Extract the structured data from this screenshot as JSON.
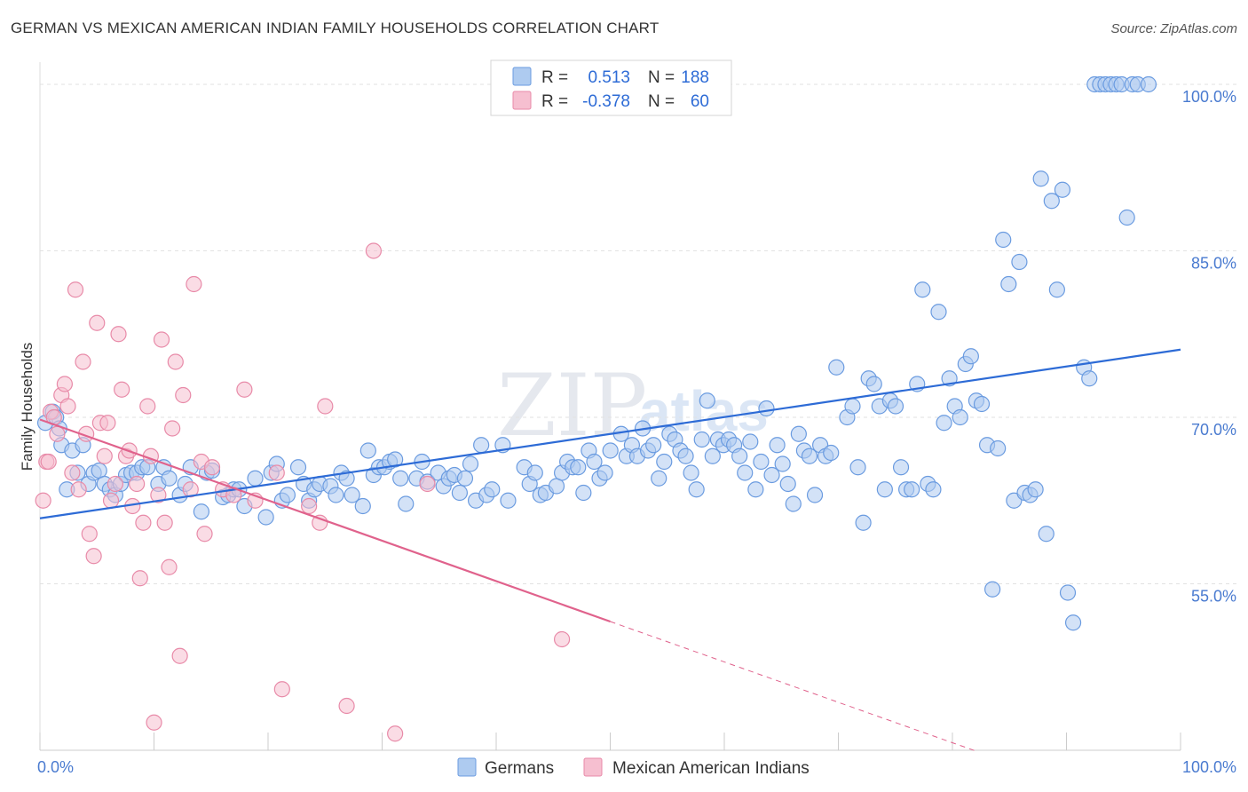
{
  "title": "GERMAN VS MEXICAN AMERICAN INDIAN FAMILY HOUSEHOLDS CORRELATION CHART",
  "source": "Source: ZipAtlas.com",
  "watermark": {
    "zip": "ZIP",
    "atlas": "atlas"
  },
  "legend": {
    "rows": [
      {
        "r_label": "R =",
        "r_value": "0.513",
        "n_label": "N =",
        "n_value": "188",
        "color": "#aecbf0",
        "stroke": "#6a9be0"
      },
      {
        "r_label": "R =",
        "r_value": "-0.378",
        "n_label": "N =",
        "n_value": "60",
        "color": "#f6bfd0",
        "stroke": "#e88aa8"
      }
    ]
  },
  "bottom_legend": [
    {
      "label": "Germans",
      "color": "#aecbf0",
      "stroke": "#6a9be0"
    },
    {
      "label": "Mexican American Indians",
      "color": "#f6bfd0",
      "stroke": "#e88aa8"
    }
  ],
  "chart_data": {
    "type": "scatter",
    "title": "GERMAN VS MEXICAN AMERICAN INDIAN FAMILY HOUSEHOLDS CORRELATION CHART",
    "xlabel": "",
    "ylabel": "Family Households",
    "xlim": [
      0,
      100
    ],
    "ylim": [
      40,
      102
    ],
    "x_tick_labels": [
      "0.0%",
      "100.0%"
    ],
    "y_ticks": [
      55,
      70,
      85,
      100
    ],
    "y_tick_labels": [
      "55.0%",
      "70.0%",
      "85.0%",
      "100.0%"
    ],
    "grid": true,
    "legend_position": "top-center",
    "series": [
      {
        "name": "Germans",
        "color": "#aecbf0",
        "stroke": "#6a9be0",
        "trend": {
          "x": [
            0,
            100
          ],
          "y": [
            60.9,
            76.1
          ],
          "color": "#2d6bd6"
        },
        "points": [
          [
            0.5,
            69.5
          ],
          [
            1.2,
            70.5
          ],
          [
            1.5,
            70
          ],
          [
            1.8,
            69
          ],
          [
            2,
            67.5
          ],
          [
            2.5,
            63.5
          ],
          [
            3,
            67
          ],
          [
            3.5,
            65
          ],
          [
            4,
            67.5
          ],
          [
            4.5,
            64
          ],
          [
            5,
            65
          ],
          [
            5.5,
            65.2
          ],
          [
            6,
            64
          ],
          [
            6.5,
            63.5
          ],
          [
            7,
            63
          ],
          [
            7.5,
            64
          ],
          [
            8,
            64.8
          ],
          [
            8.5,
            65
          ],
          [
            9,
            65
          ],
          [
            9.5,
            65.5
          ],
          [
            10,
            65.5
          ],
          [
            11,
            64
          ],
          [
            11.5,
            65.5
          ],
          [
            12,
            64.5
          ],
          [
            13,
            63
          ],
          [
            13.5,
            64
          ],
          [
            14,
            65.5
          ],
          [
            15,
            61.5
          ],
          [
            15.5,
            65
          ],
          [
            16,
            65.2
          ],
          [
            17,
            62.8
          ],
          [
            17.5,
            63
          ],
          [
            18,
            63.5
          ],
          [
            18.5,
            63.5
          ],
          [
            19,
            62
          ],
          [
            20,
            64.5
          ],
          [
            21,
            61
          ],
          [
            21.5,
            65
          ],
          [
            22,
            65.8
          ],
          [
            22.5,
            62.5
          ],
          [
            23,
            63
          ],
          [
            24,
            65.5
          ],
          [
            24.5,
            64
          ],
          [
            25,
            62.5
          ],
          [
            25.5,
            63.5
          ],
          [
            26,
            64
          ],
          [
            27,
            63.8
          ],
          [
            27.5,
            63
          ],
          [
            28,
            65
          ],
          [
            28.5,
            64.5
          ],
          [
            29,
            63
          ],
          [
            30,
            62
          ],
          [
            30.5,
            67
          ],
          [
            31,
            64.8
          ],
          [
            31.5,
            65.5
          ],
          [
            32,
            65.5
          ],
          [
            32.5,
            66
          ],
          [
            33,
            66.2
          ],
          [
            33.5,
            64.5
          ],
          [
            34,
            62.2
          ],
          [
            35,
            64.5
          ],
          [
            35.5,
            66
          ],
          [
            36,
            64.2
          ],
          [
            37,
            65
          ],
          [
            37.5,
            63.8
          ],
          [
            38,
            64.5
          ],
          [
            38.5,
            64.8
          ],
          [
            39,
            63.2
          ],
          [
            39.5,
            64.5
          ],
          [
            40,
            65.8
          ],
          [
            40.5,
            62.5
          ],
          [
            41,
            67.5
          ],
          [
            41.5,
            63
          ],
          [
            42,
            63.5
          ],
          [
            43,
            67.5
          ],
          [
            43.5,
            62.5
          ],
          [
            45,
            65.5
          ],
          [
            45.5,
            64
          ],
          [
            46,
            65
          ],
          [
            46.5,
            63
          ],
          [
            47,
            63.2
          ],
          [
            48,
            63.8
          ],
          [
            48.5,
            65
          ],
          [
            49,
            66
          ],
          [
            49.5,
            65.5
          ],
          [
            50,
            65.5
          ],
          [
            50.5,
            63.2
          ],
          [
            51,
            67
          ],
          [
            51.5,
            66
          ],
          [
            52,
            64.5
          ],
          [
            52.5,
            65
          ],
          [
            53,
            67
          ],
          [
            54,
            68.5
          ],
          [
            54.5,
            66.5
          ],
          [
            55,
            67.5
          ],
          [
            55.5,
            66.5
          ],
          [
            56,
            69
          ],
          [
            56.5,
            67
          ],
          [
            57,
            67.5
          ],
          [
            57.5,
            64.5
          ],
          [
            58,
            66
          ],
          [
            58.5,
            68.5
          ],
          [
            59,
            68
          ],
          [
            59.5,
            67
          ],
          [
            60,
            66.5
          ],
          [
            60.5,
            65
          ],
          [
            61,
            63.5
          ],
          [
            61.5,
            68
          ],
          [
            62,
            71.5
          ],
          [
            62.5,
            66.5
          ],
          [
            63,
            68
          ],
          [
            63.5,
            67.5
          ],
          [
            64,
            68
          ],
          [
            64.5,
            67.5
          ],
          [
            65,
            66.5
          ],
          [
            65.5,
            65
          ],
          [
            66,
            67.8
          ],
          [
            66.5,
            63.5
          ],
          [
            67,
            66
          ],
          [
            67.5,
            70.8
          ],
          [
            68,
            64.8
          ],
          [
            68.5,
            67.5
          ],
          [
            69,
            65.8
          ],
          [
            69.5,
            64
          ],
          [
            70,
            62.2
          ],
          [
            70.5,
            68.5
          ],
          [
            71,
            67
          ],
          [
            71.5,
            66.5
          ],
          [
            72,
            63
          ],
          [
            72.5,
            67.5
          ],
          [
            73,
            66.5
          ],
          [
            73.5,
            66.8
          ],
          [
            74,
            74.5
          ],
          [
            75,
            70
          ],
          [
            75.5,
            71
          ],
          [
            76,
            65.5
          ],
          [
            76.5,
            60.5
          ],
          [
            77,
            73.5
          ],
          [
            77.5,
            73
          ],
          [
            78,
            71
          ],
          [
            78.5,
            63.5
          ],
          [
            79,
            71.5
          ],
          [
            79.5,
            71
          ],
          [
            80,
            65.5
          ],
          [
            80.5,
            63.5
          ],
          [
            81,
            63.5
          ],
          [
            81.5,
            73
          ],
          [
            82,
            81.5
          ],
          [
            82.5,
            64
          ],
          [
            83,
            63.5
          ],
          [
            83.5,
            79.5
          ],
          [
            84,
            69.5
          ],
          [
            84.5,
            73.5
          ],
          [
            85,
            71
          ],
          [
            85.5,
            70
          ],
          [
            86,
            74.8
          ],
          [
            86.5,
            75.5
          ],
          [
            87,
            71.5
          ],
          [
            87.5,
            71.2
          ],
          [
            88,
            67.5
          ],
          [
            88.5,
            54.5
          ],
          [
            89,
            67.2
          ],
          [
            89.5,
            86
          ],
          [
            90,
            82
          ],
          [
            90.5,
            62.5
          ],
          [
            91,
            84
          ],
          [
            91.5,
            63.2
          ],
          [
            92,
            63
          ],
          [
            92.5,
            63.5
          ],
          [
            93,
            91.5
          ],
          [
            93.5,
            59.5
          ],
          [
            94,
            89.5
          ],
          [
            94.5,
            81.5
          ],
          [
            95,
            90.5
          ],
          [
            95.5,
            54.2
          ],
          [
            96,
            51.5
          ],
          [
            97,
            74.5
          ],
          [
            97.5,
            73.5
          ],
          [
            98,
            100
          ],
          [
            98.5,
            100
          ],
          [
            99,
            100
          ],
          [
            99.5,
            100
          ],
          [
            100,
            100
          ],
          [
            100.5,
            100
          ],
          [
            101,
            88
          ],
          [
            101.5,
            100
          ],
          [
            102,
            100
          ],
          [
            103,
            100
          ]
        ]
      },
      {
        "name": "Mexican American Indians",
        "color": "#f6bfd0",
        "stroke": "#e88aa8",
        "trend": {
          "x": [
            0,
            50
          ],
          "y": [
            69.8,
            51.6
          ],
          "color": "#e0628c"
        },
        "trend_dashed": {
          "x": [
            50,
            100
          ],
          "y": [
            51.6,
            33.4
          ]
        },
        "points": [
          [
            0.3,
            62.5
          ],
          [
            0.6,
            66
          ],
          [
            0.8,
            66
          ],
          [
            1,
            70.5
          ],
          [
            1.3,
            70
          ],
          [
            1.6,
            68.5
          ],
          [
            2,
            72
          ],
          [
            2.3,
            73
          ],
          [
            2.6,
            71
          ],
          [
            3,
            65
          ],
          [
            3.3,
            81.5
          ],
          [
            3.6,
            63.5
          ],
          [
            4,
            75
          ],
          [
            4.3,
            68.5
          ],
          [
            4.6,
            59.5
          ],
          [
            5,
            57.5
          ],
          [
            5.3,
            78.5
          ],
          [
            5.6,
            69.5
          ],
          [
            6,
            66.5
          ],
          [
            6.3,
            69.5
          ],
          [
            6.6,
            62.5
          ],
          [
            7,
            64
          ],
          [
            7.3,
            77.5
          ],
          [
            7.6,
            72.5
          ],
          [
            8,
            66.5
          ],
          [
            8.3,
            67
          ],
          [
            8.6,
            62
          ],
          [
            9,
            64
          ],
          [
            9.3,
            55.5
          ],
          [
            9.6,
            60.5
          ],
          [
            10,
            71
          ],
          [
            10.3,
            66.5
          ],
          [
            10.6,
            42.5
          ],
          [
            11,
            63
          ],
          [
            11.3,
            77
          ],
          [
            11.6,
            60.5
          ],
          [
            12,
            56.5
          ],
          [
            12.3,
            69
          ],
          [
            12.6,
            75
          ],
          [
            13,
            48.5
          ],
          [
            13.3,
            72
          ],
          [
            14,
            63.5
          ],
          [
            14.3,
            82
          ],
          [
            15,
            66
          ],
          [
            15.3,
            59.5
          ],
          [
            16,
            65.5
          ],
          [
            17,
            63.5
          ],
          [
            18,
            63
          ],
          [
            19,
            72.5
          ],
          [
            20,
            62.5
          ],
          [
            22,
            65
          ],
          [
            22.5,
            45.5
          ],
          [
            25,
            62
          ],
          [
            26,
            60.5
          ],
          [
            26.5,
            71
          ],
          [
            28.5,
            44
          ],
          [
            31,
            85
          ],
          [
            33,
            41.5
          ],
          [
            36,
            64
          ],
          [
            48.5,
            50
          ]
        ]
      }
    ]
  }
}
